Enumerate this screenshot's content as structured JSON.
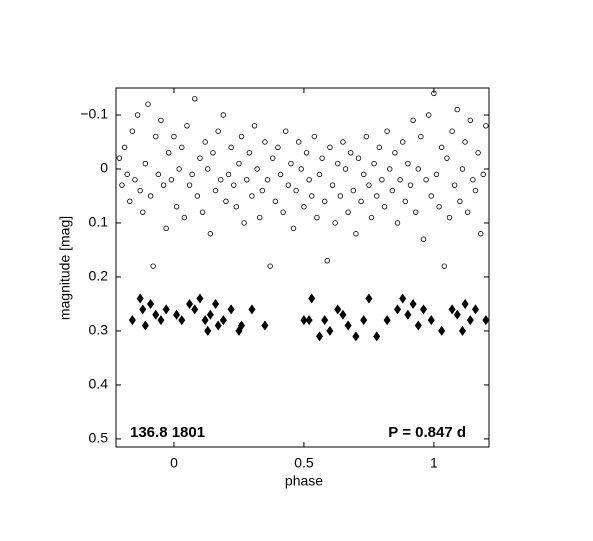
{
  "chart_data": {
    "type": "scatter",
    "xlabel": "phase",
    "ylabel": "magnitude  [mag]",
    "annotations": [
      "136.8 1801",
      "P = 0.847 d"
    ],
    "xlim": [
      -0.223,
      1.212
    ],
    "ylim": [
      -0.15,
      0.515
    ],
    "y_inverted": true,
    "xticks": [
      0,
      0.5,
      1
    ],
    "yticks": [
      {
        "value": -0.1,
        "label": "−0.1"
      },
      0,
      0.1,
      0.2,
      0.3,
      0.4,
      0.5
    ],
    "series": [
      {
        "marker": "circle",
        "color": "#000000",
        "x": [
          -0.21,
          -0.2,
          -0.19,
          -0.18,
          -0.17,
          -0.16,
          -0.15,
          -0.14,
          -0.13,
          -0.12,
          -0.11,
          -0.1,
          -0.09,
          -0.08,
          -0.07,
          -0.06,
          -0.05,
          -0.04,
          -0.03,
          -0.02,
          -0.01,
          0,
          0.01,
          0.02,
          0.03,
          0.04,
          0.05,
          0.06,
          0.07,
          0.08,
          0.09,
          0.1,
          0.11,
          0.12,
          0.13,
          0.14,
          0.15,
          0.16,
          0.17,
          0.18,
          0.19,
          0.2,
          0.21,
          0.22,
          0.23,
          0.24,
          0.25,
          0.26,
          0.27,
          0.28,
          0.29,
          0.3,
          0.31,
          0.32,
          0.33,
          0.34,
          0.35,
          0.36,
          0.37,
          0.38,
          0.39,
          0.4,
          0.41,
          0.42,
          0.43,
          0.44,
          0.45,
          0.46,
          0.47,
          0.48,
          0.49,
          0.5,
          0.51,
          0.52,
          0.53,
          0.54,
          0.55,
          0.56,
          0.57,
          0.58,
          0.59,
          0.6,
          0.61,
          0.62,
          0.63,
          0.64,
          0.65,
          0.66,
          0.67,
          0.68,
          0.69,
          0.7,
          0.71,
          0.72,
          0.73,
          0.74,
          0.75,
          0.76,
          0.77,
          0.78,
          0.79,
          0.8,
          0.81,
          0.82,
          0.83,
          0.84,
          0.85,
          0.86,
          0.87,
          0.88,
          0.89,
          0.9,
          0.91,
          0.92,
          0.93,
          0.94,
          0.95,
          0.96,
          0.97,
          0.98,
          0.99,
          1,
          1.01,
          1.02,
          1.03,
          1.04,
          1.05,
          1.06,
          1.07,
          1.08,
          1.09,
          1.1,
          1.11,
          1.12,
          1.13,
          1.14,
          1.15,
          1.16,
          1.17,
          1.18,
          1.19,
          1.2
        ],
        "values": [
          -0.02,
          0.03,
          -0.04,
          0.01,
          0.06,
          -0.07,
          0.02,
          -0.1,
          0.04,
          0.08,
          -0.01,
          -0.12,
          0.05,
          0.18,
          -0.06,
          0.01,
          -0.09,
          0.03,
          0.11,
          -0.03,
          0.02,
          -0.06,
          0.07,
          0.0,
          -0.04,
          0.09,
          -0.08,
          0.03,
          0.01,
          -0.13,
          0.05,
          -0.02,
          0.08,
          -0.05,
          0.0,
          0.12,
          -0.03,
          0.04,
          -0.07,
          0.02,
          -0.1,
          0.06,
          0.01,
          -0.04,
          0.03,
          0.07,
          -0.01,
          -0.06,
          0.1,
          0.02,
          -0.03,
          0.05,
          -0.08,
          0.0,
          0.09,
          0.04,
          -0.05,
          0.02,
          0.18,
          -0.02,
          0.06,
          -0.04,
          0.01,
          0.08,
          -0.07,
          0.03,
          -0.01,
          0.11,
          0.04,
          -0.05,
          0.0,
          0.07,
          -0.03,
          0.02,
          0.05,
          -0.06,
          0.09,
          0.01,
          -0.02,
          0.06,
          0.17,
          -0.04,
          0.03,
          0.1,
          -0.01,
          0.05,
          -0.05,
          0.0,
          0.08,
          -0.03,
          0.04,
          0.12,
          -0.02,
          0.06,
          0.01,
          -0.06,
          0.03,
          0.09,
          -0.01,
          0.05,
          -0.04,
          0.02,
          0.07,
          -0.07,
          0.0,
          0.04,
          -0.03,
          0.1,
          0.02,
          -0.05,
          0.06,
          -0.01,
          0.03,
          -0.09,
          0.08,
          0.0,
          -0.06,
          0.13,
          0.02,
          -0.1,
          0.05,
          -0.14,
          0.01,
          0.07,
          -0.04,
          0.18,
          -0.02,
          0.09,
          -0.07,
          0.03,
          -0.11,
          0.06,
          0.0,
          -0.05,
          0.08,
          -0.09,
          0.02,
          0.04,
          -0.03,
          0.12,
          0.01,
          -0.08
        ]
      },
      {
        "marker": "diamond",
        "color": "#000000",
        "x": [
          -0.16,
          -0.13,
          -0.12,
          -0.11,
          -0.09,
          -0.07,
          -0.05,
          -0.03,
          0.01,
          0.03,
          0.06,
          0.08,
          0.1,
          0.12,
          0.13,
          0.14,
          0.16,
          0.17,
          0.19,
          0.22,
          0.25,
          0.26,
          0.3,
          0.35,
          0.5,
          0.52,
          0.53,
          0.56,
          0.58,
          0.6,
          0.63,
          0.65,
          0.67,
          0.7,
          0.73,
          0.75,
          0.78,
          0.82,
          0.86,
          0.88,
          0.9,
          0.92,
          0.94,
          0.96,
          0.99,
          1.03,
          1.07,
          1.09,
          1.11,
          1.12,
          1.14,
          1.16,
          1.2
        ],
        "values": [
          0.28,
          0.24,
          0.26,
          0.29,
          0.25,
          0.27,
          0.28,
          0.26,
          0.27,
          0.28,
          0.25,
          0.26,
          0.24,
          0.28,
          0.3,
          0.27,
          0.25,
          0.29,
          0.28,
          0.26,
          0.3,
          0.29,
          0.26,
          0.29,
          0.28,
          0.28,
          0.24,
          0.31,
          0.28,
          0.3,
          0.26,
          0.27,
          0.29,
          0.31,
          0.28,
          0.24,
          0.31,
          0.28,
          0.26,
          0.24,
          0.27,
          0.25,
          0.29,
          0.26,
          0.28,
          0.3,
          0.26,
          0.27,
          0.3,
          0.25,
          0.28,
          0.26,
          0.28
        ]
      }
    ]
  }
}
